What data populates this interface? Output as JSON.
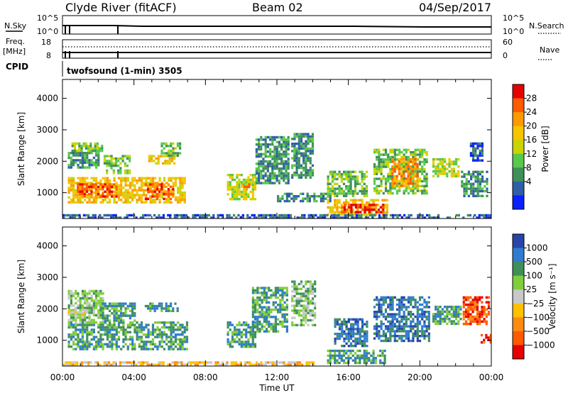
{
  "header": {
    "station": "Clyde River (fitACF)",
    "beam": "Beam 02",
    "date": "04/Sep/2017"
  },
  "top_panels": {
    "nsky_label": "N.Sky",
    "nsky_tick_top": "10^5",
    "nsky_tick_bottom": "10^0",
    "nsearch_label": "N.Search",
    "nsearch_tick_top": "10^5",
    "nsearch_tick_bottom": "10^0",
    "freq_label_1": "Freq.",
    "freq_label_2": "[MHz]",
    "freq_tick_top": "18",
    "freq_tick_bottom": "8",
    "nave_label": "Nave",
    "nave_tick_top": "60",
    "nave_tick_bottom": "0",
    "cpid_label": "CPID",
    "cpid_text": "twofsound (1-min) 3505"
  },
  "power_colorbar": {
    "title": "Power [dB]",
    "ticks": [
      "28",
      "24",
      "20",
      "16",
      "12",
      "8",
      "4"
    ],
    "colors": [
      "#e60000",
      "#ff5a00",
      "#ff9a00",
      "#f7c400",
      "#c9d400",
      "#58c94a",
      "#3f8f5a",
      "#2f5ea8",
      "#0b1fff"
    ]
  },
  "velocity_colorbar": {
    "title": "Velocity [m s⁻¹]",
    "ticks": [
      "1000",
      "500",
      "100",
      "25",
      "−25",
      "−100",
      "−500",
      "−1000"
    ],
    "colors": [
      "#2745a8",
      "#2f7bd0",
      "#3f8f5a",
      "#7fcf3a",
      "#c8c8c8",
      "#ffc000",
      "#ff8a10",
      "#ff5a00",
      "#e60000"
    ]
  },
  "chart_data": {
    "type": "heatmap",
    "xlabel": "Time UT",
    "ylabel": "Slant Range [km]",
    "x_ticks": [
      "00:00",
      "04:00",
      "08:00",
      "12:00",
      "16:00",
      "20:00",
      "00:00"
    ],
    "y_ticks": [
      "1000",
      "2000",
      "3000",
      "4000"
    ],
    "ylim": [
      180,
      4600
    ],
    "xlim_hours": [
      0,
      24
    ],
    "power_patches": [
      {
        "t0": 0.3,
        "t1": 6.8,
        "r0": 700,
        "r1": 1500,
        "level": 5
      },
      {
        "t0": 0.8,
        "t1": 3.0,
        "r0": 900,
        "r1": 1300,
        "level": 7
      },
      {
        "t0": 4.6,
        "t1": 6.2,
        "r0": 800,
        "r1": 1300,
        "level": 7
      },
      {
        "t0": 0.3,
        "t1": 2.0,
        "r0": 1800,
        "r1": 2300,
        "level": 2
      },
      {
        "t0": 2.3,
        "t1": 3.8,
        "r0": 1600,
        "r1": 2200,
        "level": 3
      },
      {
        "t0": 4.8,
        "t1": 6.3,
        "r0": 1900,
        "r1": 2200,
        "level": 5
      },
      {
        "t0": 5.5,
        "t1": 6.6,
        "r0": 2200,
        "r1": 2600,
        "level": 3
      },
      {
        "t0": 0.5,
        "t1": 2.2,
        "r0": 2300,
        "r1": 2600,
        "level": 3
      },
      {
        "t0": 9.2,
        "t1": 10.8,
        "r0": 800,
        "r1": 1600,
        "level": 4
      },
      {
        "t0": 10.0,
        "t1": 10.5,
        "r0": 1000,
        "r1": 1300,
        "level": 6
      },
      {
        "t0": 10.8,
        "t1": 12.7,
        "r0": 1300,
        "r1": 2800,
        "level": 2
      },
      {
        "t0": 12.8,
        "t1": 14.0,
        "r0": 1500,
        "r1": 2900,
        "level": 2
      },
      {
        "t0": 12.0,
        "t1": 15.0,
        "r0": 700,
        "r1": 1000,
        "level": 2
      },
      {
        "t0": 14.8,
        "t1": 18.2,
        "r0": 300,
        "r1": 800,
        "level": 5
      },
      {
        "t0": 15.6,
        "t1": 18.0,
        "r0": 350,
        "r1": 650,
        "level": 8
      },
      {
        "t0": 14.8,
        "t1": 17.0,
        "r0": 900,
        "r1": 1700,
        "level": 3
      },
      {
        "t0": 17.4,
        "t1": 20.4,
        "r0": 1000,
        "r1": 2400,
        "level": 3
      },
      {
        "t0": 18.4,
        "t1": 19.8,
        "r0": 1200,
        "r1": 2100,
        "level": 6
      },
      {
        "t0": 20.7,
        "t1": 22.2,
        "r0": 1500,
        "r1": 2100,
        "level": 4
      },
      {
        "t0": 22.3,
        "t1": 23.8,
        "r0": 900,
        "r1": 1700,
        "level": 2
      },
      {
        "t0": 22.8,
        "t1": 23.5,
        "r0": 2000,
        "r1": 2600,
        "level": 1
      },
      {
        "t0": 0.0,
        "t1": 24.0,
        "r0": 200,
        "r1": 320,
        "level": 1
      }
    ],
    "velocity_patches": [
      {
        "t0": 0.3,
        "t1": 7.0,
        "r0": 700,
        "r1": 1600,
        "level": 6
      },
      {
        "t0": 0.3,
        "t1": 2.3,
        "r0": 1600,
        "r1": 2600,
        "level": 5
      },
      {
        "t0": 2.2,
        "t1": 4.0,
        "r0": 1600,
        "r1": 2200,
        "level": 6
      },
      {
        "t0": 4.6,
        "t1": 6.5,
        "r0": 1900,
        "r1": 2200,
        "level": 6
      },
      {
        "t0": 9.2,
        "t1": 10.8,
        "r0": 800,
        "r1": 1600,
        "level": 6
      },
      {
        "t0": 10.6,
        "t1": 12.6,
        "r0": 1300,
        "r1": 2700,
        "level": 6
      },
      {
        "t0": 12.8,
        "t1": 14.1,
        "r0": 1500,
        "r1": 2900,
        "level": 5
      },
      {
        "t0": 14.8,
        "t1": 18.1,
        "r0": 300,
        "r1": 700,
        "level": 6
      },
      {
        "t0": 15.2,
        "t1": 17.0,
        "r0": 800,
        "r1": 1700,
        "level": 7
      },
      {
        "t0": 17.4,
        "t1": 20.5,
        "r0": 1000,
        "r1": 2400,
        "level": 7
      },
      {
        "t0": 20.7,
        "t1": 22.3,
        "r0": 1500,
        "r1": 2100,
        "level": 6
      },
      {
        "t0": 22.4,
        "t1": 23.8,
        "r0": 1500,
        "r1": 2400,
        "level": 1
      },
      {
        "t0": 23.4,
        "t1": 24.0,
        "r0": 900,
        "r1": 1200,
        "level": 1
      },
      {
        "t0": 0.0,
        "t1": 14.0,
        "r0": 200,
        "r1": 330,
        "level": 3
      },
      {
        "t0": 0.3,
        "t1": 1.5,
        "r0": 1800,
        "r1": 2000,
        "level": 4
      }
    ]
  }
}
